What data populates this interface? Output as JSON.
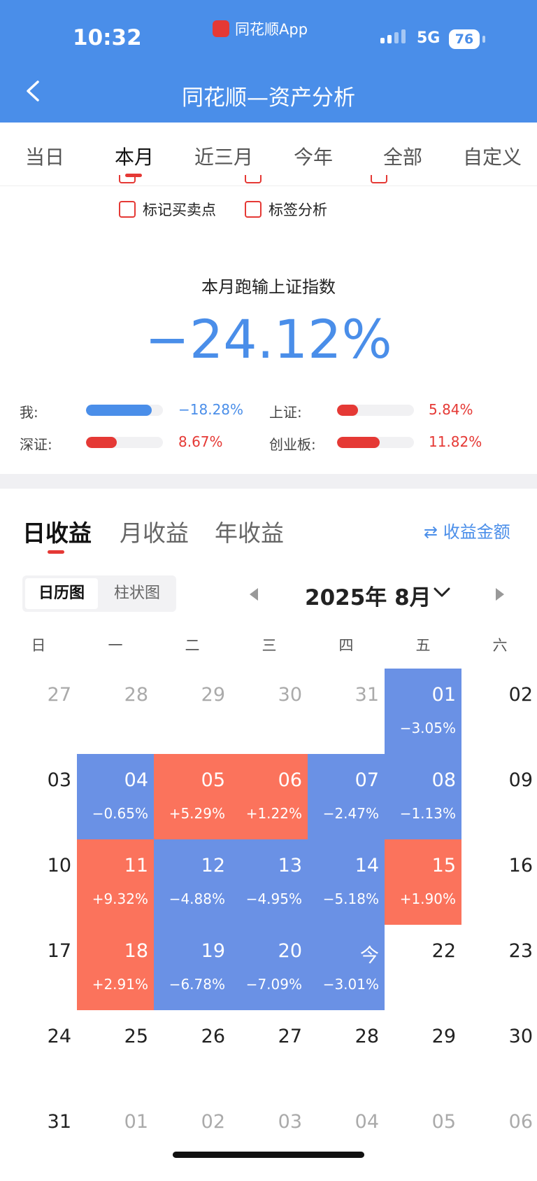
{
  "status_bar": {
    "time": "10:32",
    "app_label": "同花顺App",
    "network": "5G",
    "battery": "76"
  },
  "header": {
    "title": "同花顺—资产分析"
  },
  "period_tabs": [
    {
      "label": "当日"
    },
    {
      "label": "本月"
    },
    {
      "label": "近三月"
    },
    {
      "label": "今年"
    },
    {
      "label": "全部"
    },
    {
      "label": "自定义"
    }
  ],
  "active_period_tab": "本月",
  "options": {
    "mark_trades": "标记买卖点",
    "tag_analysis": "标签分析"
  },
  "comparison": {
    "title": "本月跑输上证指数",
    "value": "−24.12%",
    "items": [
      {
        "label": "我:",
        "value": "−18.28%",
        "fill": 0.85,
        "color": "#4a8ee9"
      },
      {
        "label": "上证:",
        "value": "5.84%",
        "fill": 0.27,
        "color": "#e53935"
      },
      {
        "label": "深证:",
        "value": "8.67%",
        "fill": 0.4,
        "color": "#e53935"
      },
      {
        "label": "创业板:",
        "value": "11.82%",
        "fill": 0.55,
        "color": "#e53935"
      }
    ]
  },
  "return_tabs": [
    {
      "label": "日收益"
    },
    {
      "label": "月收益"
    },
    {
      "label": "年收益"
    }
  ],
  "amount_link": "收益金额",
  "view_toggle": {
    "calendar": "日历图",
    "bar": "柱状图"
  },
  "month_label": "2025年 8月",
  "weekdays": [
    "日",
    "一",
    "二",
    "三",
    "四",
    "五",
    "六"
  ],
  "calendar": [
    [
      {
        "day": "27",
        "kind": "other"
      },
      {
        "day": "28",
        "kind": "other"
      },
      {
        "day": "29",
        "kind": "other"
      },
      {
        "day": "30",
        "kind": "other"
      },
      {
        "day": "31",
        "kind": "other"
      },
      {
        "day": "01",
        "kind": "blue",
        "ret": "−3.05%"
      },
      {
        "day": "02",
        "kind": "plain"
      }
    ],
    [
      {
        "day": "03",
        "kind": "plain"
      },
      {
        "day": "04",
        "kind": "blue",
        "ret": "−0.65%"
      },
      {
        "day": "05",
        "kind": "red",
        "ret": "+5.29%"
      },
      {
        "day": "06",
        "kind": "red",
        "ret": "+1.22%"
      },
      {
        "day": "07",
        "kind": "blue",
        "ret": "−2.47%"
      },
      {
        "day": "08",
        "kind": "blue",
        "ret": "−1.13%"
      },
      {
        "day": "09",
        "kind": "plain"
      }
    ],
    [
      {
        "day": "10",
        "kind": "plain"
      },
      {
        "day": "11",
        "kind": "red",
        "ret": "+9.32%"
      },
      {
        "day": "12",
        "kind": "blue",
        "ret": "−4.88%"
      },
      {
        "day": "13",
        "kind": "blue",
        "ret": "−4.95%"
      },
      {
        "day": "14",
        "kind": "blue",
        "ret": "−5.18%"
      },
      {
        "day": "15",
        "kind": "red",
        "ret": "+1.90%"
      },
      {
        "day": "16",
        "kind": "plain"
      }
    ],
    [
      {
        "day": "17",
        "kind": "plain"
      },
      {
        "day": "18",
        "kind": "red",
        "ret": "+2.91%"
      },
      {
        "day": "19",
        "kind": "blue",
        "ret": "−6.78%"
      },
      {
        "day": "20",
        "kind": "blue",
        "ret": "−7.09%"
      },
      {
        "day": "今",
        "kind": "blue",
        "ret": "−3.01%"
      },
      {
        "day": "22",
        "kind": "plain"
      },
      {
        "day": "23",
        "kind": "plain"
      }
    ],
    [
      {
        "day": "24",
        "kind": "plain"
      },
      {
        "day": "25",
        "kind": "plain"
      },
      {
        "day": "26",
        "kind": "plain"
      },
      {
        "day": "27",
        "kind": "plain"
      },
      {
        "day": "28",
        "kind": "plain"
      },
      {
        "day": "29",
        "kind": "plain"
      },
      {
        "day": "30",
        "kind": "plain"
      }
    ],
    [
      {
        "day": "31",
        "kind": "plain"
      },
      {
        "day": "01",
        "kind": "other"
      },
      {
        "day": "02",
        "kind": "other"
      },
      {
        "day": "03",
        "kind": "other"
      },
      {
        "day": "04",
        "kind": "other"
      },
      {
        "day": "05",
        "kind": "other"
      },
      {
        "day": "06",
        "kind": "other"
      }
    ]
  ],
  "colors": {
    "header": "#4a8ee9",
    "gain": "#fb735c",
    "loss": "#6a91e5",
    "accent_red": "#e53935"
  }
}
